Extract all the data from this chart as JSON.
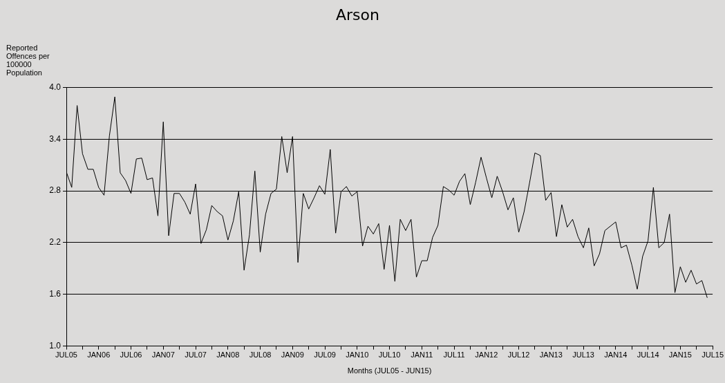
{
  "chart_data": {
    "type": "line",
    "title": "Arson",
    "xlabel": "Months (JUL05 - JUN15)",
    "ylabel": "Reported Offences per 100000 Population",
    "x": [
      "2005-07",
      "2005-08",
      "2005-09",
      "2005-10",
      "2005-11",
      "2005-12",
      "2006-01",
      "2006-02",
      "2006-03",
      "2006-04",
      "2006-05",
      "2006-06",
      "2006-07",
      "2006-08",
      "2006-09",
      "2006-10",
      "2006-11",
      "2006-12",
      "2007-01",
      "2007-02",
      "2007-03",
      "2007-04",
      "2007-05",
      "2007-06",
      "2007-07",
      "2007-08",
      "2007-09",
      "2007-10",
      "2007-11",
      "2007-12",
      "2008-01",
      "2008-02",
      "2008-03",
      "2008-04",
      "2008-05",
      "2008-06",
      "2008-07",
      "2008-08",
      "2008-09",
      "2008-10",
      "2008-11",
      "2008-12",
      "2009-01",
      "2009-02",
      "2009-03",
      "2009-04",
      "2009-05",
      "2009-06",
      "2009-07",
      "2009-08",
      "2009-09",
      "2009-10",
      "2009-11",
      "2009-12",
      "2010-01",
      "2010-02",
      "2010-03",
      "2010-04",
      "2010-05",
      "2010-06",
      "2010-07",
      "2010-08",
      "2010-09",
      "2010-10",
      "2010-11",
      "2010-12",
      "2011-01",
      "2011-02",
      "2011-03",
      "2011-04",
      "2011-05",
      "2011-06",
      "2011-07",
      "2011-08",
      "2011-09",
      "2011-10",
      "2011-11",
      "2011-12",
      "2012-01",
      "2012-02",
      "2012-03",
      "2012-04",
      "2012-05",
      "2012-06",
      "2012-07",
      "2012-08",
      "2012-09",
      "2012-10",
      "2012-11",
      "2012-12",
      "2013-01",
      "2013-02",
      "2013-03",
      "2013-04",
      "2013-05",
      "2013-06",
      "2013-07",
      "2013-08",
      "2013-09",
      "2013-10",
      "2013-11",
      "2013-12",
      "2014-01",
      "2014-02",
      "2014-03",
      "2014-04",
      "2014-05",
      "2014-06",
      "2014-07",
      "2014-08",
      "2014-09",
      "2014-10",
      "2014-11",
      "2014-12",
      "2015-01",
      "2015-02",
      "2015-03",
      "2015-04",
      "2015-05",
      "2015-06"
    ],
    "series": [
      {
        "color": "#000000",
        "values": [
          3.02,
          2.84,
          3.79,
          3.23,
          3.05,
          3.05,
          2.84,
          2.75,
          3.44,
          3.89,
          3.01,
          2.92,
          2.77,
          3.17,
          3.18,
          2.93,
          2.95,
          2.51,
          3.6,
          2.28,
          2.77,
          2.77,
          2.67,
          2.53,
          2.88,
          2.19,
          2.35,
          2.63,
          2.56,
          2.51,
          2.23,
          2.45,
          2.79,
          1.88,
          2.29,
          3.03,
          2.09,
          2.53,
          2.77,
          2.82,
          3.43,
          3.01,
          3.43,
          1.97,
          2.77,
          2.59,
          2.72,
          2.86,
          2.76,
          3.28,
          2.31,
          2.79,
          2.85,
          2.74,
          2.79,
          2.16,
          2.39,
          2.3,
          2.42,
          1.89,
          2.4,
          1.75,
          2.47,
          2.34,
          2.47,
          1.8,
          1.99,
          1.99,
          2.26,
          2.4,
          2.85,
          2.81,
          2.75,
          2.91,
          3.0,
          2.64,
          2.9,
          3.19,
          2.95,
          2.72,
          2.97,
          2.79,
          2.58,
          2.72,
          2.32,
          2.56,
          2.89,
          3.24,
          3.21,
          2.69,
          2.78,
          2.27,
          2.64,
          2.38,
          2.47,
          2.27,
          2.14,
          2.37,
          1.93,
          2.07,
          2.34,
          2.39,
          2.44,
          2.14,
          2.17,
          1.94,
          1.66,
          2.04,
          2.22,
          2.84,
          2.14,
          2.2,
          2.53,
          1.62,
          1.92,
          1.74,
          1.88,
          1.72,
          1.76,
          1.56
        ]
      }
    ],
    "xlim": [
      "2005-07",
      "2015-07"
    ],
    "xticks": [
      {
        "value": "2005-07",
        "label": "JUL05"
      },
      {
        "value": "2005-10",
        "label": null
      },
      {
        "value": "2006-01",
        "label": "JAN06"
      },
      {
        "value": "2006-04",
        "label": null
      },
      {
        "value": "2006-07",
        "label": "JUL06"
      },
      {
        "value": "2006-10",
        "label": null
      },
      {
        "value": "2007-01",
        "label": "JAN07"
      },
      {
        "value": "2007-04",
        "label": null
      },
      {
        "value": "2007-07",
        "label": "JUL07"
      },
      {
        "value": "2007-10",
        "label": null
      },
      {
        "value": "2008-01",
        "label": "JAN08"
      },
      {
        "value": "2008-04",
        "label": null
      },
      {
        "value": "2008-07",
        "label": "JUL08"
      },
      {
        "value": "2008-10",
        "label": null
      },
      {
        "value": "2009-01",
        "label": "JAN09"
      },
      {
        "value": "2009-04",
        "label": null
      },
      {
        "value": "2009-07",
        "label": "JUL09"
      },
      {
        "value": "2009-10",
        "label": null
      },
      {
        "value": "2010-01",
        "label": "JAN10"
      },
      {
        "value": "2010-04",
        "label": null
      },
      {
        "value": "2010-07",
        "label": "JUL10"
      },
      {
        "value": "2010-10",
        "label": null
      },
      {
        "value": "2011-01",
        "label": "JAN11"
      },
      {
        "value": "2011-04",
        "label": null
      },
      {
        "value": "2011-07",
        "label": "JUL11"
      },
      {
        "value": "2011-10",
        "label": null
      },
      {
        "value": "2012-01",
        "label": "JAN12"
      },
      {
        "value": "2012-04",
        "label": null
      },
      {
        "value": "2012-07",
        "label": "JUL12"
      },
      {
        "value": "2012-10",
        "label": null
      },
      {
        "value": "2013-01",
        "label": "JAN13"
      },
      {
        "value": "2013-04",
        "label": null
      },
      {
        "value": "2013-07",
        "label": "JUL13"
      },
      {
        "value": "2013-10",
        "label": null
      },
      {
        "value": "2014-01",
        "label": "JAN14"
      },
      {
        "value": "2014-04",
        "label": null
      },
      {
        "value": "2014-07",
        "label": "JUL14"
      },
      {
        "value": "2014-10",
        "label": null
      },
      {
        "value": "2015-01",
        "label": "JAN15"
      },
      {
        "value": "2015-04",
        "label": null
      },
      {
        "value": "2015-07",
        "label": "JUL15"
      }
    ],
    "ylim": [
      1.0,
      4.0
    ],
    "yticks": [
      {
        "value": 1.0,
        "label": "1.0"
      },
      {
        "value": 1.6,
        "label": "1.6"
      },
      {
        "value": 2.2,
        "label": "2.2"
      },
      {
        "value": 2.8,
        "label": "2.8"
      },
      {
        "value": 3.4,
        "label": "3.4"
      },
      {
        "value": 4.0,
        "label": "4.0"
      }
    ],
    "grid": "y",
    "marker": "none",
    "line_style": "solid"
  }
}
